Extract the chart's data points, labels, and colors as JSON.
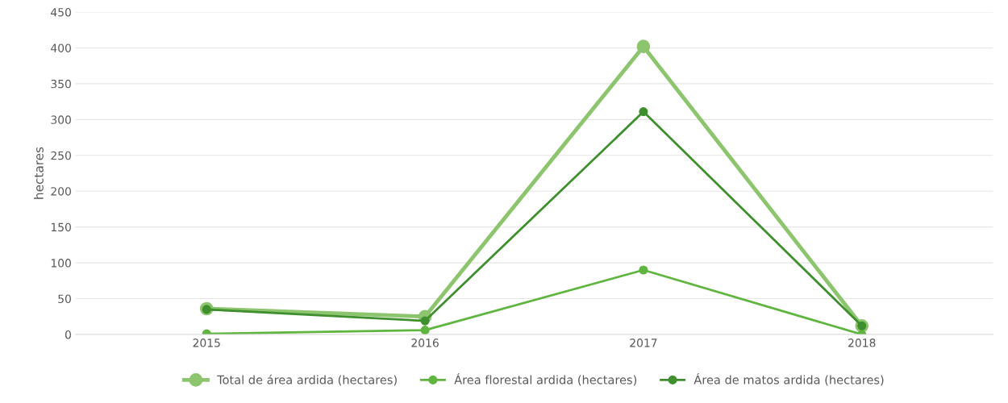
{
  "chart_data": {
    "type": "line",
    "ylabel": "hectares",
    "categories": [
      "2015",
      "2016",
      "2017",
      "2018"
    ],
    "series": [
      {
        "name": "Total de área ardida (hectares)",
        "color": "#8cc56e",
        "values": [
          36,
          25,
          402,
          12
        ]
      },
      {
        "name": "Área florestal ardida (hectares)",
        "color": "#5fb53f",
        "values": [
          1,
          6,
          90,
          0
        ]
      },
      {
        "name": "Área de matos ardida (hectares)",
        "color": "#3f8f2f",
        "values": [
          35,
          19,
          311,
          12
        ]
      }
    ],
    "ylim": [
      0,
      450
    ],
    "yticks": [
      0,
      50,
      100,
      150,
      200,
      250,
      300,
      350,
      400,
      450
    ],
    "grid": "y",
    "legend": "bottom",
    "marker": "circle",
    "line_style": "solid"
  }
}
